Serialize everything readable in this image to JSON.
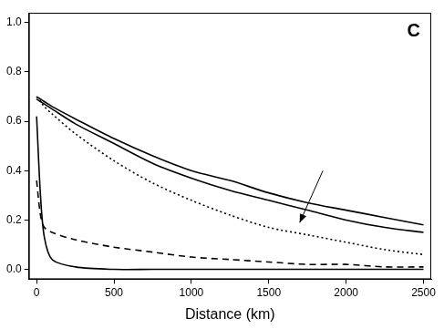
{
  "chart_data": {
    "type": "line",
    "panel_label": "C",
    "x_label": "Distance (km)",
    "x": [
      0,
      25,
      50,
      100,
      250,
      500,
      750,
      1000,
      1250,
      1500,
      1750,
      2000,
      2250,
      2500
    ],
    "series": [
      {
        "color": "#000000",
        "line_style": "solid",
        "values": [
          0.7,
          0.69,
          0.68,
          0.66,
          0.61,
          0.53,
          0.46,
          0.4,
          0.36,
          0.31,
          0.27,
          0.24,
          0.21,
          0.18
        ]
      },
      {
        "color": "#000000",
        "line_style": "solid",
        "values": [
          0.69,
          0.68,
          0.67,
          0.65,
          0.59,
          0.51,
          0.43,
          0.37,
          0.32,
          0.28,
          0.24,
          0.2,
          0.17,
          0.15
        ]
      },
      {
        "color": "#000000",
        "line_style": "dotted",
        "values": [
          0.7,
          0.68,
          0.66,
          0.63,
          0.55,
          0.44,
          0.35,
          0.28,
          0.22,
          0.17,
          0.14,
          0.11,
          0.08,
          0.06
        ]
      },
      {
        "color": "#000000",
        "line_style": "dashed",
        "values": [
          0.36,
          0.22,
          0.17,
          0.15,
          0.12,
          0.09,
          0.07,
          0.05,
          0.04,
          0.03,
          0.02,
          0.02,
          0.01,
          0.01
        ]
      },
      {
        "color": "#000000",
        "line_style": "solid",
        "values": [
          0.62,
          0.3,
          0.13,
          0.04,
          0.01,
          0.0,
          0.0,
          0.0,
          0.0,
          0.0,
          0.0,
          0.0,
          0.0,
          0.0
        ]
      }
    ],
    "xlim": [
      -50,
      2550
    ],
    "xticks": [
      0,
      500,
      1000,
      1500,
      2000,
      2500
    ],
    "ylim": [
      -0.04,
      1.04
    ],
    "yticks": [
      {
        "value": 0,
        "label": "0.0"
      },
      {
        "value": 0.2,
        "label": "0.2"
      },
      {
        "value": 0.4,
        "label": "0.4"
      },
      {
        "value": 0.6,
        "label": "0.6"
      },
      {
        "value": 0.8,
        "label": "0.8"
      },
      {
        "value": 1.0,
        "label": "1.0"
      }
    ],
    "grid": false
  }
}
